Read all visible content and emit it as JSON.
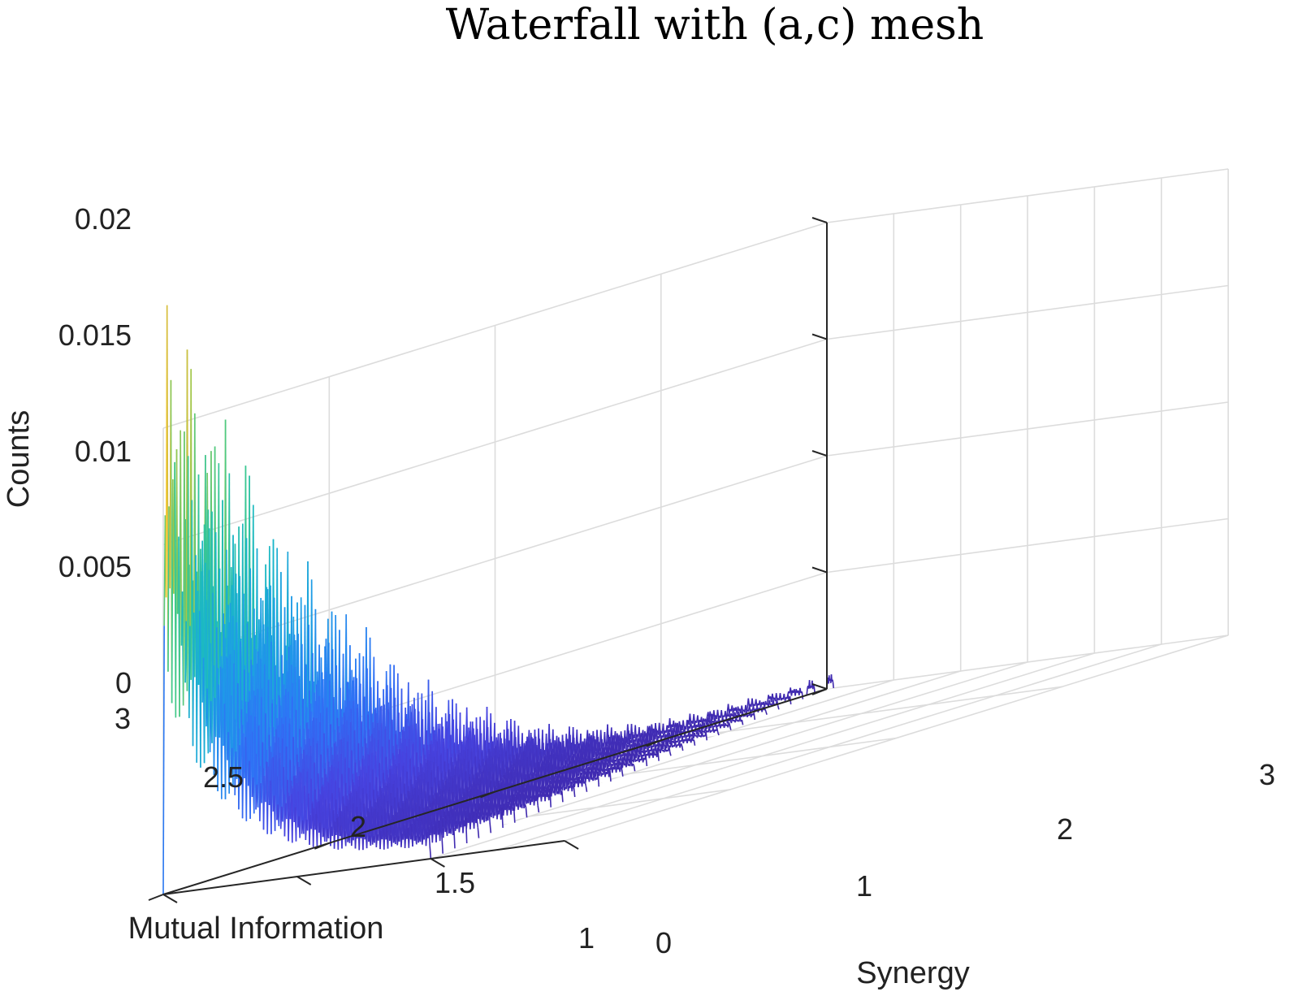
{
  "chart_data": {
    "type": "waterfall",
    "title": "Waterfall with (a,c) mesh",
    "xlabel": "Synergy",
    "ylabel": "Mutual Information",
    "zlabel": "Counts",
    "xlim": [
      0,
      3
    ],
    "ylim": [
      1,
      3
    ],
    "zlim": [
      0,
      0.02
    ],
    "x_ticks": [
      "0",
      "1",
      "2",
      "3"
    ],
    "y_ticks": [
      "1",
      "1.5",
      "2",
      "2.5",
      "3"
    ],
    "z_ticks": [
      "0",
      "0.005",
      "0.01",
      "0.015",
      "0.02"
    ],
    "series_summary": {
      "curves": 34,
      "mutual_information_range": [
        1.0,
        3.0
      ],
      "support": "synergy from 0 up to about (3 - mutual information)",
      "peak": {
        "synergy": 0.0,
        "mutual_information": 1.0,
        "counts": 0.021
      },
      "counts_at_mutual_information_3": 0.0005
    },
    "colormap": [
      "#3e26a8",
      "#4743e0",
      "#2f72f6",
      "#1e9ae8",
      "#19b8c6",
      "#3ec98b",
      "#a3c74a",
      "#f5b937",
      "#f9fb0e"
    ]
  }
}
